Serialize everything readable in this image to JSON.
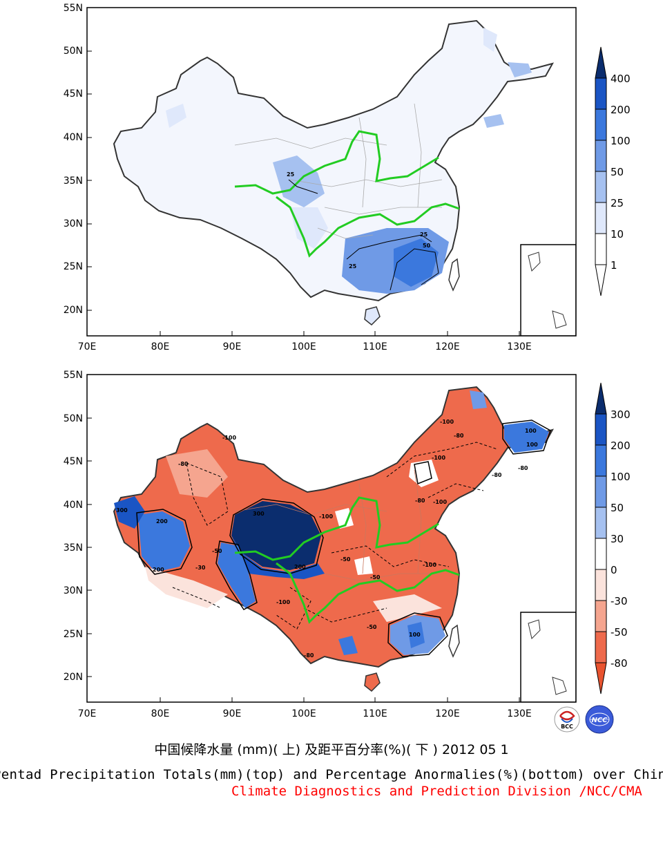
{
  "top_map": {
    "lat_labels": [
      "55N",
      "50N",
      "45N",
      "40N",
      "35N",
      "30N",
      "25N",
      "20N"
    ],
    "lon_labels": [
      "70E",
      "80E",
      "90E",
      "100E",
      "110E",
      "120E",
      "130E"
    ],
    "contour_labels": [
      "25",
      "25",
      "25",
      "50"
    ],
    "colorbar": {
      "labels": [
        "400",
        "200",
        "100",
        "50",
        "25",
        "10",
        "1"
      ],
      "colors": [
        "#0b2d6e",
        "#1a55c4",
        "#3b78dd",
        "#6f9ae6",
        "#a6c1f0",
        "#dfe8fb",
        "#ffffff"
      ]
    }
  },
  "bottom_map": {
    "lat_labels": [
      "55N",
      "50N",
      "45N",
      "40N",
      "35N",
      "30N",
      "25N",
      "20N"
    ],
    "lon_labels": [
      "70E",
      "80E",
      "90E",
      "100E",
      "110E",
      "120E",
      "130E"
    ],
    "contour_labels": [
      "-100",
      "-80",
      "-80",
      "-100",
      "-100",
      "-100",
      "-80",
      "-80",
      "-100",
      "100",
      "-50",
      "100",
      "300",
      "200",
      "200",
      "-50",
      "-50",
      "100",
      "-100",
      "-100",
      "-80",
      "300",
      "200",
      "-30",
      "-50",
      "-80"
    ],
    "colorbar": {
      "labels": [
        "300",
        "200",
        "100",
        "50",
        "30",
        "0",
        "-30",
        "-50",
        "-80"
      ],
      "colors": [
        "#0b2d6e",
        "#1a55c4",
        "#3b78dd",
        "#6f9ae6",
        "#a6c1f0",
        "#ffffff",
        "#fbe3dc",
        "#f5a58f",
        "#ee6a4c",
        "#e8532f"
      ]
    }
  },
  "logos": {
    "bcc": "BCC",
    "ncc": "NCC"
  },
  "caption_cn": "中国候降水量 (mm)( 上) 及距平百分率(%)( 下 ) 2012 05 1",
  "caption_en": "Pentad Precipitation Totals(mm)(top) and Percentage Anormalies(%)(bottom) over China",
  "caption_source": "Climate Diagnostics and Prediction Division /NCC/CMA",
  "colors": {
    "river": "#22cc22",
    "source_text": "#ff0000"
  }
}
